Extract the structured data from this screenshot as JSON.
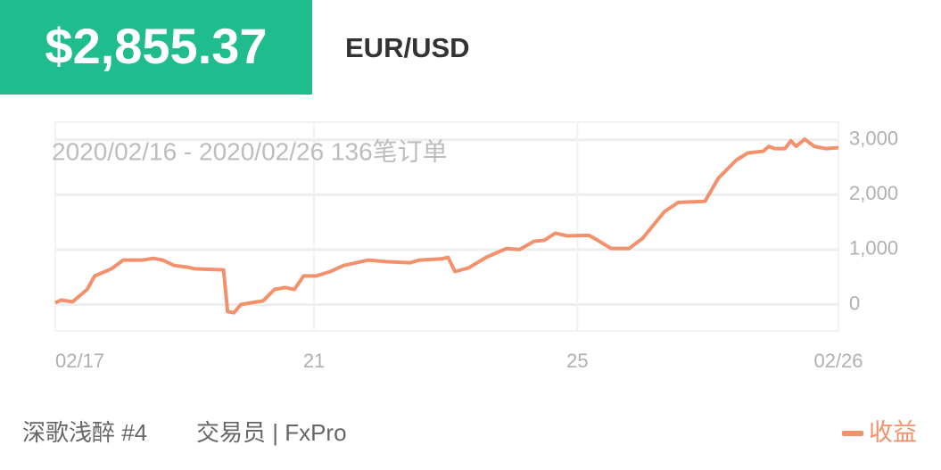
{
  "header": {
    "amount": "$2,855.37",
    "symbol": "EUR/USD"
  },
  "chart_data": {
    "type": "line",
    "annotation": "2020/02/16 - 2020/02/26  136笔订单",
    "x": [
      0,
      1,
      3,
      5.5,
      6.8,
      9.7,
      11.7,
      15,
      16.9,
      18.5,
      20.5,
      22.8,
      24,
      29,
      29.7,
      30.8,
      32,
      35.8,
      37.8,
      39.7,
      41.2,
      42.8,
      45,
      47.4,
      49.7,
      54,
      57,
      61.2,
      62.8,
      66.6,
      67.7,
      68.9,
      71.2,
      74.3,
      77.8,
      80,
      82.5,
      84.3,
      86.2,
      88.2,
      92,
      93.5,
      95.8,
      98.9,
      101.2,
      105,
      107.4,
      112,
      114.3,
      117.4,
      119.4,
      122,
      123,
      124,
      125.8,
      126.8,
      127.7,
      129.2,
      130.8,
      132.8,
      135
    ],
    "series": [
      {
        "name": "收益",
        "color": "#f2916b",
        "values": [
          30,
          80,
          50,
          275,
          520,
          650,
          810,
          810,
          840,
          810,
          710,
          680,
          650,
          630,
          -130,
          -150,
          0,
          65,
          275,
          310,
          275,
          520,
          520,
          600,
          710,
          810,
          780,
          760,
          810,
          830,
          860,
          600,
          665,
          860,
          1020,
          1000,
          1150,
          1170,
          1300,
          1250,
          1260,
          1170,
          1020,
          1020,
          1200,
          1690,
          1860,
          1880,
          2300,
          2630,
          2760,
          2790,
          2880,
          2840,
          2840,
          2980,
          2880,
          3010,
          2880,
          2840,
          2855
        ]
      }
    ],
    "xlim": [
      0,
      135
    ],
    "xticks": [
      {
        "value": 0,
        "label": "02/17"
      },
      {
        "value": 44.6,
        "label": "21"
      },
      {
        "value": 90,
        "label": "25"
      },
      {
        "value": 135,
        "label": "02/26"
      }
    ],
    "ylim": [
      -480,
      3320
    ],
    "yticks": [
      0,
      {
        "value": 1000,
        "label": "1,000"
      },
      {
        "value": 2000,
        "label": "2,000"
      },
      {
        "value": 3000,
        "label": "3,000"
      }
    ],
    "grid": true
  },
  "footer": {
    "trader": "深歌浅醉 #4",
    "role": "交易员 | FxPro"
  }
}
